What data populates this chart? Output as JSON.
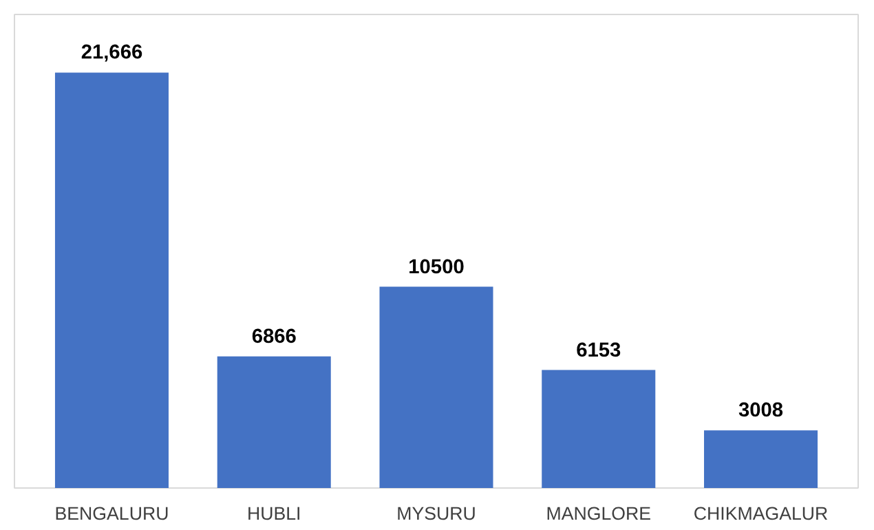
{
  "chart_data": {
    "type": "bar",
    "categories": [
      "BENGALURU",
      "HUBLI",
      "MYSURU",
      "MANGLORE",
      "CHIKMAGALUR"
    ],
    "values": [
      21666,
      6866,
      10500,
      6153,
      3008
    ],
    "value_labels": [
      "21,666",
      "6866",
      "10500",
      "6153",
      "3008"
    ],
    "color": "#4472c4"
  }
}
